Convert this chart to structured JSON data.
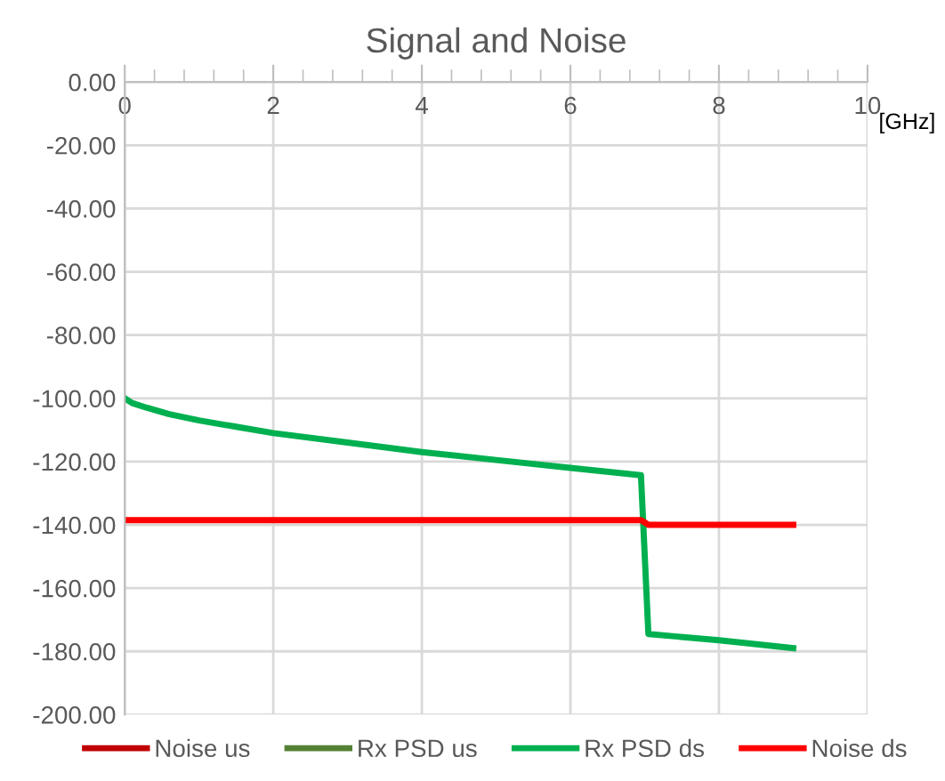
{
  "chart_data": {
    "type": "line",
    "title": "Signal and Noise",
    "xlabel": "[GHz]",
    "xlim": [
      0,
      10
    ],
    "xticks": [
      0,
      {
        "value": 0.4,
        "label": null
      },
      {
        "value": 0.8,
        "label": null
      },
      {
        "value": 1.2,
        "label": null
      },
      {
        "value": 1.6,
        "label": null
      },
      2,
      {
        "value": 2.4,
        "label": null
      },
      {
        "value": 2.8,
        "label": null
      },
      {
        "value": 3.2,
        "label": null
      },
      {
        "value": 3.6,
        "label": null
      },
      4,
      {
        "value": 4.4,
        "label": null
      },
      {
        "value": 4.8,
        "label": null
      },
      {
        "value": 5.2,
        "label": null
      },
      {
        "value": 5.6,
        "label": null
      },
      6,
      {
        "value": 6.4,
        "label": null
      },
      {
        "value": 6.8,
        "label": null
      },
      {
        "value": 7.2,
        "label": null
      },
      {
        "value": 7.6,
        "label": null
      },
      8,
      {
        "value": 8.4,
        "label": null
      },
      {
        "value": 8.8,
        "label": null
      },
      {
        "value": 9.2,
        "label": null
      },
      {
        "value": 9.6,
        "label": null
      },
      10
    ],
    "ylim": [
      -200,
      0
    ],
    "yticks": [
      {
        "value": 0,
        "label": "0.00"
      },
      {
        "value": -20,
        "label": "-20.00"
      },
      {
        "value": -40,
        "label": "-40.00"
      },
      {
        "value": -60,
        "label": "-60.00"
      },
      {
        "value": -80,
        "label": "-80.00"
      },
      {
        "value": -100,
        "label": "-100.00"
      },
      {
        "value": -120,
        "label": "-120.00"
      },
      {
        "value": -140,
        "label": "-140.00"
      },
      {
        "value": -160,
        "label": "-160.00"
      },
      {
        "value": -180,
        "label": "-180.00"
      },
      {
        "value": -200,
        "label": "-200.00"
      }
    ],
    "grid": true,
    "legend": "bottom",
    "marker": "none",
    "line_style": "solid",
    "series": [
      {
        "name": "Noise us",
        "color": "#c00000"
      },
      {
        "name": "Rx PSD us",
        "color": "#548235"
      },
      {
        "name": "Rx PSD ds",
        "color": "#00b050",
        "x": [
          0,
          0.1,
          0.3,
          0.6,
          1,
          1.5,
          2,
          3,
          4,
          5,
          6,
          6.95,
          7.05,
          8,
          9
        ],
        "values": [
          -100,
          -101.5,
          -103,
          -105,
          -107,
          -109,
          -111,
          -114,
          -117,
          -119.5,
          -122,
          -124.3,
          -174.5,
          -176.5,
          -179
        ]
      },
      {
        "name": "Noise ds",
        "color": "#ff0000",
        "x": [
          0,
          6.95,
          7.05,
          9
        ],
        "values": [
          -138.5,
          -138.5,
          -140,
          -140
        ]
      }
    ]
  }
}
